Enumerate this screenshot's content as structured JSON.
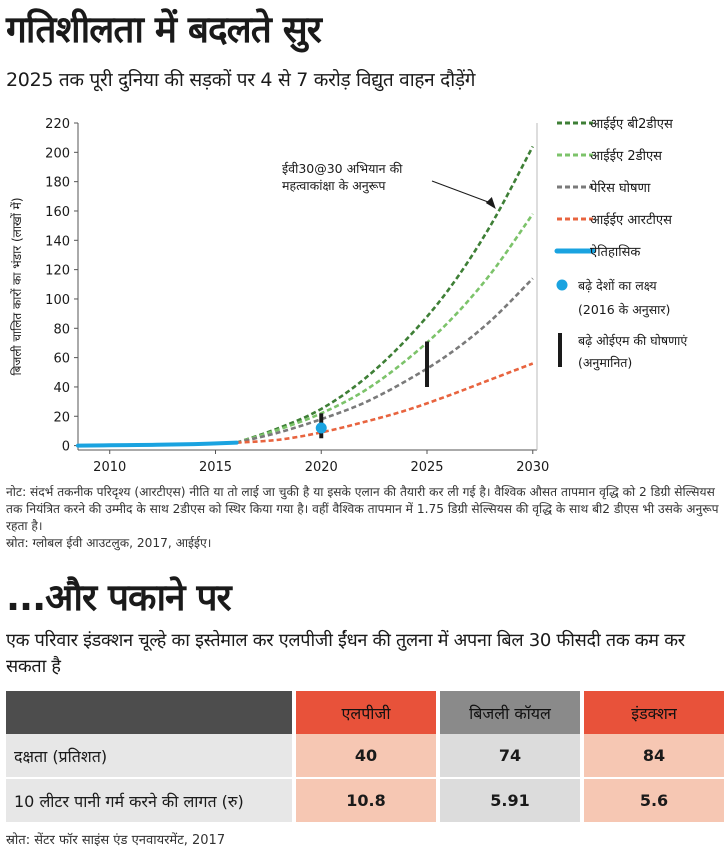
{
  "header": {
    "title": "गतिशीलता में बदलते सुर",
    "subtitle": "2025 तक पूरी दुनिया की सड़कों पर 4 से 7 करोड़ विद्युत वाहन दौड़ेंगे"
  },
  "chart_data": {
    "type": "line",
    "ylabel": "बिजली चालित कारों का भंडार (लाखों में)",
    "xlim": [
      2008.5,
      2030.2
    ],
    "ylim": [
      -3,
      220
    ],
    "x_ticks": [
      2010,
      2015,
      2020,
      2025,
      2030
    ],
    "y_ticks": [
      0,
      20,
      40,
      60,
      80,
      100,
      120,
      140,
      160,
      180,
      200,
      220
    ],
    "grid": false,
    "legend_position": "right",
    "colors": {
      "b2ds": "#3e7f36",
      "2ds": "#7cc36a",
      "paris": "#7a7a7a",
      "rts": "#e8643f",
      "historical": "#1aa3e0",
      "target": "#1aa3e0",
      "oem": "#1a1a1a"
    },
    "series": [
      {
        "name": "आईईए बी2डीएस",
        "key": "b2ds",
        "style": "dashed",
        "x": [
          2016,
          2018,
          2020,
          2022,
          2024,
          2026,
          2028,
          2030
        ],
        "y": [
          2,
          12,
          25,
          45,
          72,
          106,
          150,
          204
        ]
      },
      {
        "name": "आईईए 2डीएस",
        "key": "2ds",
        "style": "dashed",
        "x": [
          2016,
          2018,
          2020,
          2022,
          2024,
          2026,
          2028,
          2030
        ],
        "y": [
          2,
          11,
          22,
          37,
          58,
          84,
          117,
          158
        ]
      },
      {
        "name": "पेरिस घोषणा",
        "key": "paris",
        "style": "dashed",
        "x": [
          2016,
          2018,
          2020,
          2022,
          2024,
          2026,
          2028,
          2030
        ],
        "y": [
          2,
          9,
          18,
          29,
          44,
          62,
          85,
          114
        ]
      },
      {
        "name": "आईईए आरटीएस",
        "key": "rts",
        "style": "dashed",
        "x": [
          2016,
          2018,
          2020,
          2022,
          2024,
          2026,
          2028,
          2030
        ],
        "y": [
          2,
          4,
          9,
          16,
          24,
          34,
          45,
          56
        ]
      },
      {
        "name": "ऐतिहासिक",
        "key": "historical",
        "style": "solid",
        "x": [
          2008.5,
          2010,
          2012,
          2014,
          2016
        ],
        "y": [
          0,
          0.2,
          0.5,
          1,
          2
        ]
      }
    ],
    "markers": [
      {
        "name": "बढ़े देशों का लक्ष्य",
        "name2": "(2016 के अनुसार)",
        "key": "target",
        "x": 2020,
        "y": 12
      }
    ],
    "ranges": [
      {
        "name": "बढ़े ओईएम की घोषणाएं",
        "name2": "(अनुमानित)",
        "key": "oem",
        "x": 2020,
        "y_low": 5,
        "y_high": 22
      },
      {
        "key": "oem",
        "x": 2025,
        "y_low": 40,
        "y_high": 71
      }
    ],
    "annotation": {
      "line1": "ईवी30@30 अभियान की",
      "line2": "महत्वाकांक्षा के अनुरूप",
      "target_x": 2028.3,
      "target_y": 160
    }
  },
  "notes": {
    "note": "नोट: संदर्भ तकनीक परिदृश्य (आरटीएस) नीति या तो लाई जा चुकी है या इसके एलान की तैयारी कर ली गई है। वैश्विक औसत तापमान वृद्धि को 2 डिग्री सेल्सियस तक नियंत्रित करने की उम्मीद के साथ 2डीएस को स्थिर किया गया है। वहीं वैश्विक तापमान में 1.75 डिग्री सेल्सियस की वृद्धि के साथ बी2 डीएस भी उसके अनुरूप रहता है।",
    "source": "स्रोत: ग्लोबल ईवी आउटलुक, 2017, आईईए।"
  },
  "section2": {
    "title": "...और पकाने पर",
    "subtitle": "एक परिवार इंडक्शन चूल्हे का इस्तेमाल कर एलपीजी ईंधन की तुलना में अपना बिल 30 फीसदी तक कम कर सकता है",
    "table": {
      "headers": [
        "एलपीजी",
        "बिजली कॉयल",
        "इंडक्शन"
      ],
      "rows": [
        {
          "label": "दक्षता (प्रतिशत)",
          "values": [
            "40",
            "74",
            "84"
          ]
        },
        {
          "label": "10 लीटर पानी गर्म करने की लागत (रु)",
          "values": [
            "10.8",
            "5.91",
            "5.6"
          ]
        }
      ]
    },
    "source": "स्रोत: सेंटर फॉर साइंस एंड एनवायरमेंट, 2017"
  }
}
